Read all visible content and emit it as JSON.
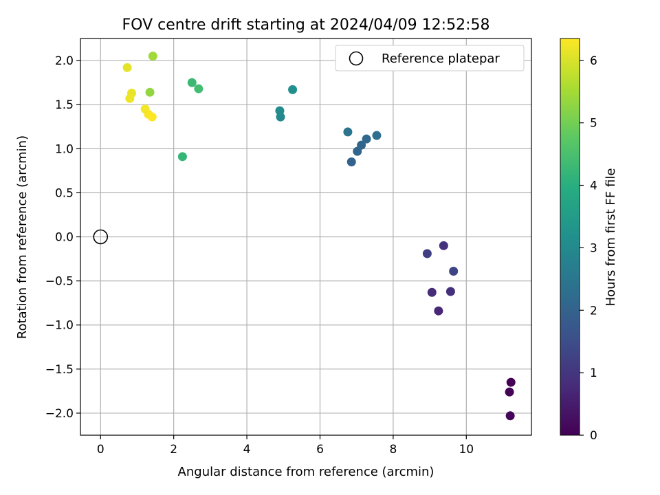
{
  "chart_data": {
    "type": "scatter",
    "title": "FOV centre drift starting at 2024/04/09 12:52:58",
    "xlabel": "Angular distance from reference (arcmin)",
    "ylabel": "Rotation from reference (arcmin)",
    "xlim": [
      -0.55,
      11.78
    ],
    "ylim": [
      -2.25,
      2.25
    ],
    "x_ticks": [
      0,
      2,
      4,
      6,
      8,
      10
    ],
    "y_ticks": [
      -2.0,
      -1.5,
      -1.0,
      -0.5,
      0.0,
      0.5,
      1.0,
      1.5,
      2.0
    ],
    "x_tick_labels": [
      "0",
      "2",
      "4",
      "6",
      "8",
      "10"
    ],
    "y_tick_labels": [
      "−2.0",
      "−1.5",
      "−1.0",
      "−0.5",
      "0.0",
      "0.5",
      "1.0",
      "1.5",
      "2.0"
    ],
    "grid": true,
    "legend": {
      "position": "top-right",
      "entries": [
        {
          "label": "Reference platepar",
          "marker": "open-circle",
          "x": 0,
          "y": 0
        }
      ]
    },
    "colorbar": {
      "label": "Hours from first FF file",
      "range": [
        0,
        6.35
      ],
      "ticks": [
        0,
        1,
        2,
        3,
        4,
        5,
        6
      ],
      "tick_labels": [
        "0",
        "1",
        "2",
        "3",
        "4",
        "5",
        "6"
      ],
      "colormap": "viridis"
    },
    "points": [
      {
        "x": 11.22,
        "y": -1.65,
        "c": 0.0
      },
      {
        "x": 11.18,
        "y": -1.76,
        "c": 0.05
      },
      {
        "x": 11.2,
        "y": -2.03,
        "c": 0.1
      },
      {
        "x": 9.24,
        "y": -0.84,
        "c": 0.7
      },
      {
        "x": 9.06,
        "y": -0.63,
        "c": 0.8
      },
      {
        "x": 9.57,
        "y": -0.62,
        "c": 0.85
      },
      {
        "x": 9.38,
        "y": -0.1,
        "c": 0.9
      },
      {
        "x": 8.93,
        "y": -0.19,
        "c": 1.2
      },
      {
        "x": 9.65,
        "y": -0.39,
        "c": 1.3
      },
      {
        "x": 6.86,
        "y": 0.85,
        "c": 2.0
      },
      {
        "x": 7.02,
        "y": 0.97,
        "c": 2.05
      },
      {
        "x": 7.13,
        "y": 1.04,
        "c": 2.1
      },
      {
        "x": 7.27,
        "y": 1.11,
        "c": 2.15
      },
      {
        "x": 7.55,
        "y": 1.15,
        "c": 2.3
      },
      {
        "x": 6.76,
        "y": 1.19,
        "c": 2.4
      },
      {
        "x": 4.92,
        "y": 1.36,
        "c": 3.0
      },
      {
        "x": 4.9,
        "y": 1.43,
        "c": 3.05
      },
      {
        "x": 5.25,
        "y": 1.67,
        "c": 3.15
      },
      {
        "x": 2.24,
        "y": 0.91,
        "c": 4.2
      },
      {
        "x": 2.5,
        "y": 1.75,
        "c": 4.3
      },
      {
        "x": 2.68,
        "y": 1.68,
        "c": 4.4
      },
      {
        "x": 1.35,
        "y": 1.64,
        "c": 5.3
      },
      {
        "x": 1.43,
        "y": 2.05,
        "c": 5.45
      },
      {
        "x": 0.73,
        "y": 1.92,
        "c": 6.1
      },
      {
        "x": 0.85,
        "y": 1.63,
        "c": 6.15
      },
      {
        "x": 0.8,
        "y": 1.57,
        "c": 6.2
      },
      {
        "x": 1.22,
        "y": 1.45,
        "c": 6.25
      },
      {
        "x": 1.31,
        "y": 1.39,
        "c": 6.3
      },
      {
        "x": 1.41,
        "y": 1.36,
        "c": 6.35
      }
    ]
  }
}
